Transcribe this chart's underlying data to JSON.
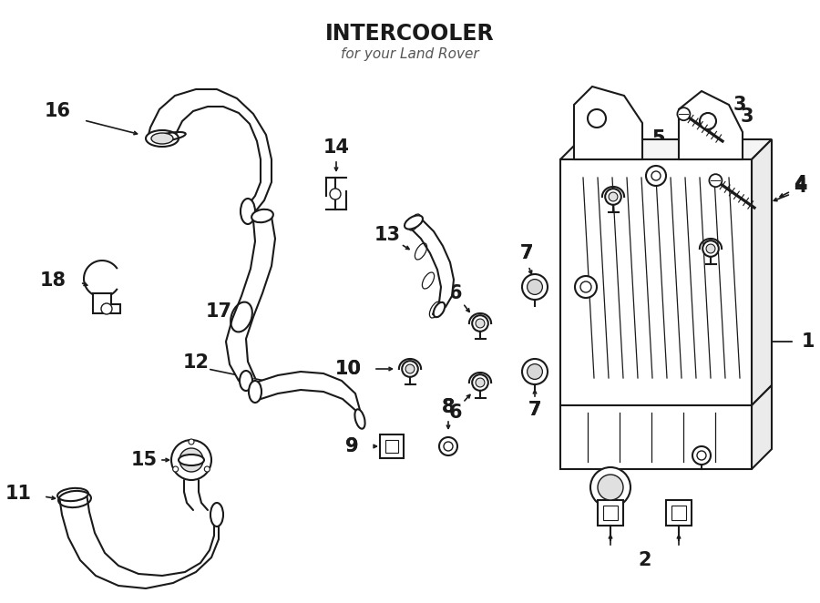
{
  "title": "INTERCOOLER",
  "subtitle": "for your Land Rover",
  "bg_color": "#ffffff",
  "lc": "#1a1a1a",
  "figsize": [
    9.0,
    6.62
  ],
  "dpi": 100
}
